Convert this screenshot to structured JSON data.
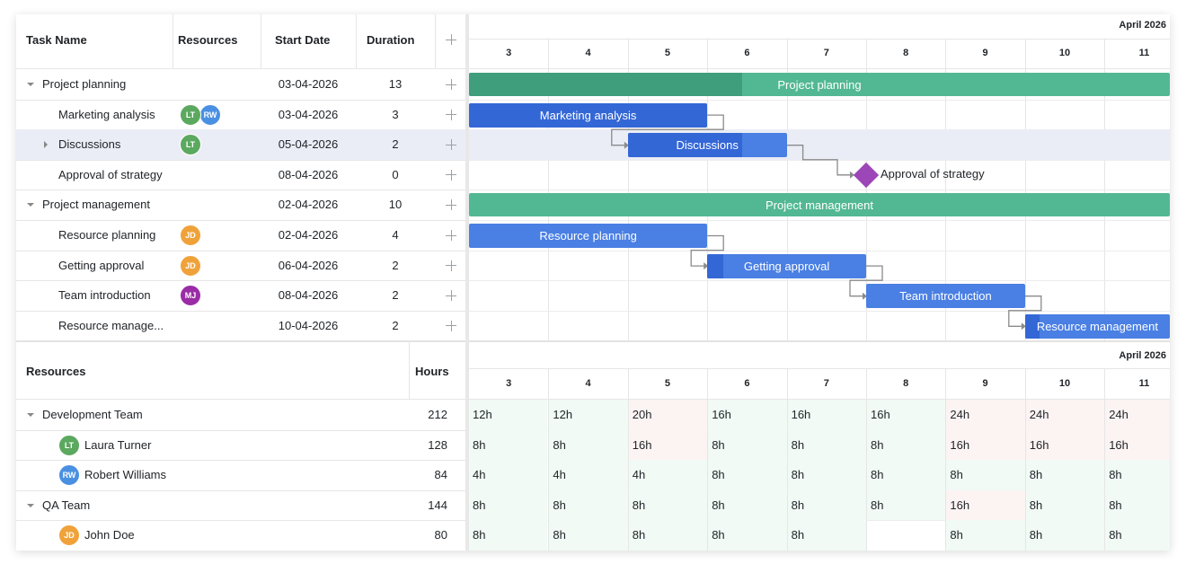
{
  "colors": {
    "summary_bar": "#52b893",
    "summary_progress": "#3f9e7c",
    "task_bar": "#4a7fe3",
    "task_progress": "#3467d6",
    "milestone": "#9c46b7",
    "selected_row": "#ebedf6",
    "overload_cell": "#fcf3f3",
    "ok_cell": "#f1faf5",
    "avatar_lt": "#5ba85f",
    "avatar_rw": "#4a90e2",
    "avatar_jd": "#f0a23a",
    "avatar_mj": "#9a2ca6"
  },
  "grid": {
    "headers": {
      "task_name": "Task Name",
      "resources": "Resources",
      "start_date": "Start Date",
      "duration": "Duration",
      "add_icon": "plus-icon"
    },
    "rows": [
      {
        "name": "Project planning",
        "level": 0,
        "toggle": "expanded",
        "start": "03-04-2026",
        "duration": "13",
        "avatars": []
      },
      {
        "name": "Marketing analysis",
        "level": 1,
        "toggle": "none",
        "start": "03-04-2026",
        "duration": "3",
        "avatars": [
          "LT",
          "RW"
        ]
      },
      {
        "name": "Discussions",
        "level": 1,
        "toggle": "collapsed",
        "start": "05-04-2026",
        "duration": "2",
        "avatars": [
          "LT"
        ],
        "selected": true
      },
      {
        "name": "Approval of strategy",
        "level": 1,
        "toggle": "none",
        "start": "08-04-2026",
        "duration": "0",
        "avatars": []
      },
      {
        "name": "Project management",
        "level": 0,
        "toggle": "expanded",
        "start": "02-04-2026",
        "duration": "10",
        "avatars": []
      },
      {
        "name": "Resource planning",
        "level": 1,
        "toggle": "none",
        "start": "02-04-2026",
        "duration": "4",
        "avatars": [
          "JD"
        ]
      },
      {
        "name": "Getting approval",
        "level": 1,
        "toggle": "none",
        "start": "06-04-2026",
        "duration": "2",
        "avatars": [
          "JD"
        ]
      },
      {
        "name": "Team introduction",
        "level": 1,
        "toggle": "none",
        "start": "08-04-2026",
        "duration": "2",
        "avatars": [
          "MJ"
        ]
      },
      {
        "name": "Resource manage...",
        "level": 1,
        "toggle": "none",
        "start": "10-04-2026",
        "duration": "2",
        "avatars": []
      }
    ]
  },
  "timeline": {
    "month": "April 2026",
    "days": [
      "3",
      "4",
      "5",
      "6",
      "7",
      "8",
      "9",
      "10",
      "11"
    ]
  },
  "gantt_bars": [
    {
      "label": "Project planning",
      "type": "summary",
      "start_day": 3,
      "duration": 13,
      "progress": 0.39
    },
    {
      "label": "Marketing analysis",
      "type": "task",
      "start_day": 3,
      "duration": 3,
      "progress": 1.0
    },
    {
      "label": "Discussions",
      "type": "task",
      "start_day": 5,
      "duration": 2,
      "progress": 0.72
    },
    {
      "label": "Approval of strategy",
      "type": "milestone",
      "start_day": 8,
      "duration": 0,
      "progress": 0
    },
    {
      "label": "Project management",
      "type": "summary",
      "start_day": 2,
      "duration": 10,
      "progress": 0
    },
    {
      "label": "Resource planning",
      "type": "task",
      "start_day": 2,
      "duration": 4,
      "progress": 0
    },
    {
      "label": "Getting approval",
      "type": "task",
      "start_day": 6,
      "duration": 2,
      "progress": 0.1
    },
    {
      "label": "Team introduction",
      "type": "task",
      "start_day": 8,
      "duration": 2,
      "progress": 0
    },
    {
      "label": "Resource management",
      "type": "task",
      "start_day": 10,
      "duration": 2,
      "progress": 0.1
    }
  ],
  "resources": {
    "headers": {
      "resources": "Resources",
      "hours": "Hours"
    },
    "rows": [
      {
        "name": "Development Team",
        "level": 0,
        "hours": "212",
        "avatar": null,
        "load": [
          "12h",
          "12h",
          "20h",
          "16h",
          "16h",
          "16h",
          "24h",
          "24h",
          "24h"
        ]
      },
      {
        "name": "Laura Turner",
        "level": 1,
        "hours": "128",
        "avatar": "LT",
        "load": [
          "8h",
          "8h",
          "16h",
          "8h",
          "8h",
          "8h",
          "16h",
          "16h",
          "16h"
        ]
      },
      {
        "name": "Robert Williams",
        "level": 1,
        "hours": "84",
        "avatar": "RW",
        "load": [
          "4h",
          "4h",
          "4h",
          "8h",
          "8h",
          "8h",
          "8h",
          "8h",
          "8h"
        ]
      },
      {
        "name": "QA Team",
        "level": 0,
        "hours": "144",
        "avatar": null,
        "load": [
          "8h",
          "8h",
          "8h",
          "8h",
          "8h",
          "8h",
          "16h",
          "8h",
          "8h"
        ]
      },
      {
        "name": "John Doe",
        "level": 1,
        "hours": "80",
        "avatar": "JD",
        "load": [
          "8h",
          "8h",
          "8h",
          "8h",
          "8h",
          "",
          "8h",
          "8h",
          "8h"
        ]
      }
    ]
  }
}
